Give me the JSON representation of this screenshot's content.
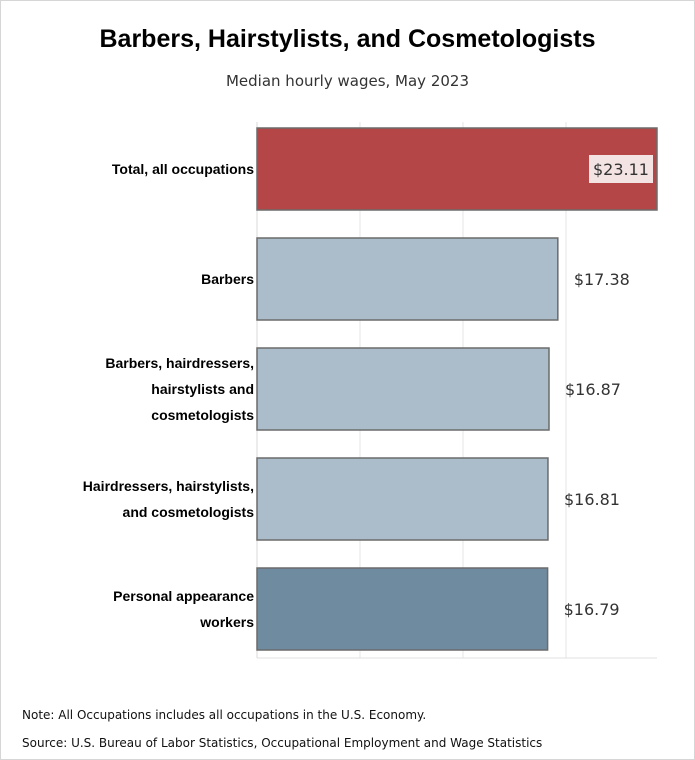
{
  "chart_data": {
    "type": "bar",
    "orientation": "horizontal",
    "title": "Barbers, Hairstylists, and Cosmetologists",
    "subtitle": "Median hourly wages, May 2023",
    "categories": [
      [
        "Total, all occupations"
      ],
      [
        "Barbers"
      ],
      [
        "Barbers, hairdressers,",
        "hairstylists and",
        "cosmetologists"
      ],
      [
        "Hairdressers, hairstylists,",
        "and cosmetologists"
      ],
      [
        "Personal appearance",
        "workers"
      ]
    ],
    "values": [
      23.11,
      17.38,
      16.87,
      16.81,
      16.79
    ],
    "value_labels": [
      "$23.11",
      "$17.38",
      "$16.87",
      "$16.81",
      "$16.79"
    ],
    "bar_colors": [
      "#b54648",
      "#abbdca",
      "#abbdca",
      "#abbdca",
      "#6f8ba0"
    ],
    "xlim": [
      0,
      23.11
    ],
    "grid": true,
    "legend": "none"
  },
  "notes": {
    "note": "Note: All Occupations includes all occupations in the U.S. Economy.",
    "source": "Source: U.S. Bureau of Labor Statistics, Occupational Employment and Wage Statistics"
  }
}
